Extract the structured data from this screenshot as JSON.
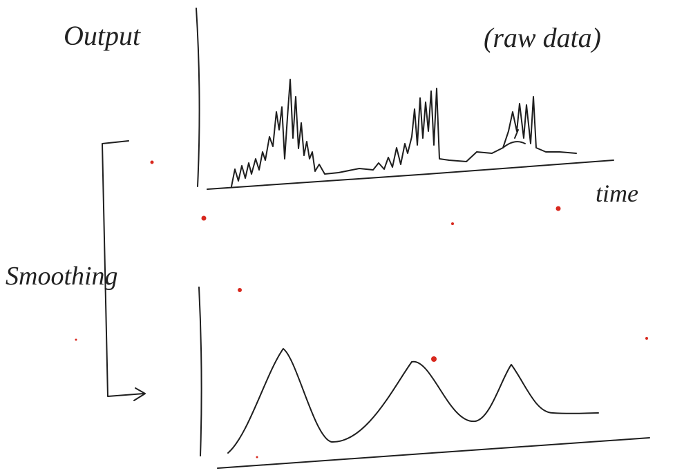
{
  "labels": {
    "y_axis": "Output",
    "annotation": "(raw data)",
    "x_axis": "time",
    "process": "Smoothing"
  }
}
